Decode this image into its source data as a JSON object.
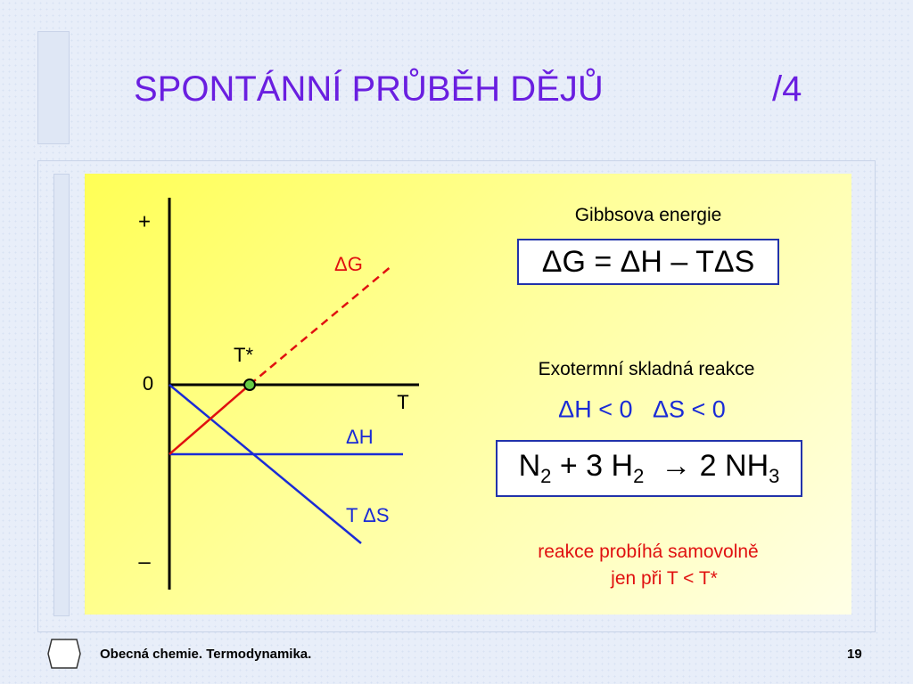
{
  "header": {
    "title": "SPONTÁNNÍ PRŮBĚH DĚJŮ",
    "part": "/4"
  },
  "diagram": {
    "plus": "+",
    "zero": "0",
    "minus": "–",
    "t_axis": "T",
    "dg": "ΔG",
    "t_star": "T*",
    "dh": "ΔH",
    "tds": "T ΔS"
  },
  "right": {
    "gibbs_heading": "Gibbsova energie",
    "gibbs_formula": "ΔG = ΔH – TΔS",
    "reaction_heading": "Exotermní skladná reakce",
    "conditions": "ΔH < 0   ΔS < 0",
    "reaction": [
      "N",
      "2",
      " + 3 H",
      "2",
      "  → 2 NH",
      "3"
    ],
    "note": [
      "reakce probíhá samovolně",
      "jen při T < T*"
    ]
  },
  "footer": {
    "text": "Obecná chemie. Termodynamika.",
    "page": "19"
  }
}
